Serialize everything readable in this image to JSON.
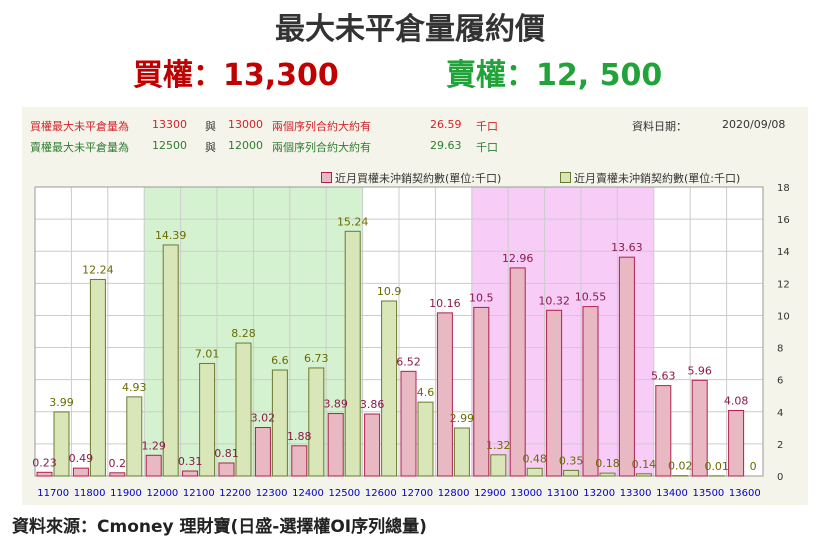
{
  "title": "最大未平倉量履約價",
  "headline": {
    "call_label": "買權：",
    "call_value": "13,300",
    "put_label": "賣權：",
    "put_value": "12, 500"
  },
  "info": {
    "call_row": {
      "prefix": "買權最大未平倉量為",
      "a": "13300",
      "conj": "與",
      "b": "13000",
      "text": "兩個序列合約大約有",
      "value": "26.59",
      "unit": "千口"
    },
    "put_row": {
      "prefix": "賣權最大未平倉量為",
      "a": "12500",
      "conj": "與",
      "b": "12000",
      "text": "兩個序列合約大約有",
      "value": "29.63",
      "unit": "千口"
    },
    "date_label": "資料日期：",
    "date": "2020/09/08"
  },
  "footer": "資料來源：Cmoney 理財寶(日盛-選擇權OI序列總量)",
  "colors": {
    "call_fill": "#e8b9c2",
    "call_stroke": "#b02050",
    "put_fill": "#d8e6b8",
    "put_stroke": "#6a7a30",
    "green_band": "#d5f2d0",
    "pink_band": "#f7ccf7",
    "call_label": "#8b1a4a",
    "put_label": "#6b6b00",
    "tick": "#0000cc"
  },
  "chart_data": {
    "type": "bar",
    "categories": [
      "11700",
      "11800",
      "11900",
      "12000",
      "12100",
      "12200",
      "12300",
      "12400",
      "12500",
      "12600",
      "12700",
      "12800",
      "12900",
      "13000",
      "13100",
      "13200",
      "13300",
      "13400",
      "13500",
      "13600"
    ],
    "series": [
      {
        "name": "近月買權未沖銷契約數(單位:千口)",
        "values": [
          0.23,
          0.49,
          0.2,
          1.29,
          0.31,
          0.81,
          3.02,
          1.88,
          3.89,
          3.86,
          6.52,
          10.16,
          10.5,
          12.96,
          10.32,
          10.55,
          13.63,
          5.63,
          5.96,
          4.08
        ]
      },
      {
        "name": "近月賣權未沖銷契約數(單位:千口)",
        "values": [
          3.99,
          12.24,
          4.93,
          14.39,
          7.01,
          8.28,
          6.6,
          6.73,
          15.24,
          10.9,
          4.6,
          2.99,
          1.32,
          0.48,
          0.35,
          0.18,
          0.14,
          0.02,
          0.01,
          0
        ]
      }
    ],
    "ylim": [
      0,
      18
    ],
    "yticks": [
      0,
      2,
      4,
      6,
      8,
      10,
      12,
      14,
      16,
      18
    ],
    "y_axis_side": "right",
    "grid": true,
    "legend": "top-right",
    "highlight_ranges": [
      {
        "from": "12000",
        "to": "12500",
        "color": "green"
      },
      {
        "from": "12900",
        "to": "13300",
        "color": "pink"
      }
    ]
  }
}
